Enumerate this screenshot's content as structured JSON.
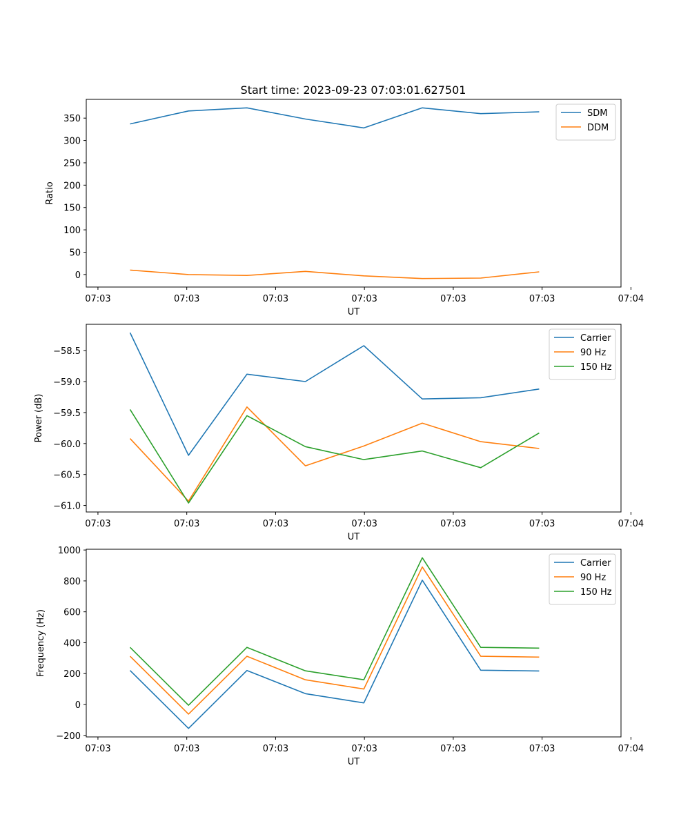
{
  "title": "Start time: 2023-09-23 07:03:01.627501",
  "chart_data": [
    {
      "type": "line",
      "xlabel": "UT",
      "ylabel": "Ratio",
      "x": [
        1,
        2,
        3,
        4,
        5,
        6,
        7,
        8
      ],
      "xlim": [
        0.25,
        9.4
      ],
      "x_ticks": [
        0.45,
        1.97,
        3.49,
        5.01,
        6.53,
        8.05,
        9.57
      ],
      "x_tick_labels": [
        "07:03",
        "07:03",
        "07:03",
        "07:03",
        "07:03",
        "07:03",
        "07:04"
      ],
      "ylim": [
        -28,
        392
      ],
      "y_ticks": [
        0,
        50,
        100,
        150,
        200,
        250,
        300,
        350
      ],
      "y_tick_labels": [
        "0",
        "50",
        "100",
        "150",
        "200",
        "250",
        "300",
        "350"
      ],
      "legend_position": "top-right",
      "series": [
        {
          "name": "SDM",
          "color": "#1f77b4",
          "values": [
            337,
            366,
            373,
            348,
            328,
            373,
            360,
            364
          ]
        },
        {
          "name": "DDM",
          "color": "#ff7f0e",
          "values": [
            10,
            0,
            -2,
            7,
            -3,
            -9,
            -8,
            6
          ]
        }
      ]
    },
    {
      "type": "line",
      "xlabel": "UT",
      "ylabel": "Power (dB)",
      "x": [
        1,
        2,
        3,
        4,
        5,
        6,
        7,
        8
      ],
      "xlim": [
        0.25,
        9.4
      ],
      "x_ticks": [
        0.45,
        1.97,
        3.49,
        5.01,
        6.53,
        8.05,
        9.57
      ],
      "x_tick_labels": [
        "07:03",
        "07:03",
        "07:03",
        "07:03",
        "07:03",
        "07:03",
        "07:04"
      ],
      "ylim": [
        -61.105,
        -58.075
      ],
      "y_ticks": [
        -61.0,
        -60.5,
        -60.0,
        -59.5,
        -59.0,
        -58.5
      ],
      "y_tick_labels": [
        "−61.0",
        "−60.5",
        "−60.0",
        "−59.5",
        "−59.0",
        "−58.5"
      ],
      "legend_position": "top-right",
      "series": [
        {
          "name": "Carrier",
          "color": "#1f77b4",
          "values": [
            -58.21,
            -60.19,
            -58.88,
            -59.0,
            -58.42,
            -59.28,
            -59.26,
            -59.12
          ]
        },
        {
          "name": "90 Hz",
          "color": "#ff7f0e",
          "values": [
            -59.92,
            -60.93,
            -59.41,
            -60.36,
            -60.04,
            -59.67,
            -59.97,
            -60.08
          ]
        },
        {
          "name": "150 Hz",
          "color": "#2ca02c",
          "values": [
            -59.45,
            -60.96,
            -59.55,
            -60.05,
            -60.26,
            -60.12,
            -60.39,
            -59.83
          ]
        }
      ]
    },
    {
      "type": "line",
      "xlabel": "UT",
      "ylabel": "Frequency (Hz)",
      "x": [
        1,
        2,
        3,
        4,
        5,
        6,
        7,
        8
      ],
      "xlim": [
        0.25,
        9.4
      ],
      "x_ticks": [
        0.45,
        1.97,
        3.49,
        5.01,
        6.53,
        8.05,
        9.57
      ],
      "x_tick_labels": [
        "07:03",
        "07:03",
        "07:03",
        "07:03",
        "07:03",
        "07:03",
        "07:04"
      ],
      "ylim": [
        -210,
        1005
      ],
      "y_ticks": [
        -200,
        0,
        200,
        400,
        600,
        800,
        1000
      ],
      "y_tick_labels": [
        "−200",
        "0",
        "200",
        "400",
        "600",
        "800",
        "1000"
      ],
      "legend_position": "top-right",
      "series": [
        {
          "name": "Carrier",
          "color": "#1f77b4",
          "values": [
            220,
            -155,
            220,
            70,
            10,
            805,
            222,
            217
          ]
        },
        {
          "name": "90 Hz",
          "color": "#ff7f0e",
          "values": [
            312,
            -62,
            312,
            160,
            100,
            890,
            312,
            307
          ]
        },
        {
          "name": "150 Hz",
          "color": "#2ca02c",
          "values": [
            370,
            -5,
            370,
            218,
            160,
            950,
            370,
            365
          ]
        }
      ]
    }
  ]
}
